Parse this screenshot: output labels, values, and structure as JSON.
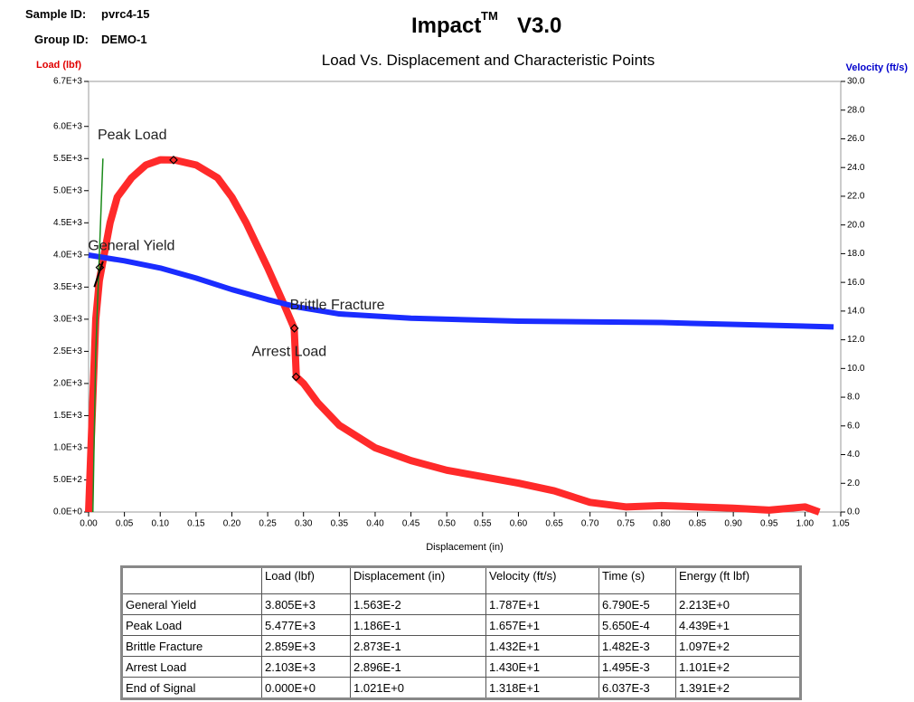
{
  "header": {
    "sample_label": "Sample ID:",
    "sample_id": "pvrc4-15",
    "group_label": "Group ID:",
    "group_id": "DEMO-1",
    "app_name": "Impact",
    "app_mark": "TM",
    "app_version": "V3.0"
  },
  "chart_data": {
    "type": "line",
    "title": "Load Vs. Displacement and Characteristic Points",
    "x_label": "Displacement (in)",
    "y_label": "Load (lbf)",
    "y2_label": "Velocity (ft/s)",
    "xlim": [
      0,
      1.05
    ],
    "xticks": [
      {
        "value": 0,
        "label": "0.00"
      },
      {
        "value": 0.05,
        "label": "0.05"
      },
      {
        "value": 0.1,
        "label": "0.10"
      },
      {
        "value": 0.15,
        "label": "0.15"
      },
      {
        "value": 0.2,
        "label": "0.20"
      },
      {
        "value": 0.25,
        "label": "0.25"
      },
      {
        "value": 0.3,
        "label": "0.30"
      },
      {
        "value": 0.35,
        "label": "0.35"
      },
      {
        "value": 0.4,
        "label": "0.40"
      },
      {
        "value": 0.45,
        "label": "0.45"
      },
      {
        "value": 0.5,
        "label": "0.50"
      },
      {
        "value": 0.55,
        "label": "0.55"
      },
      {
        "value": 0.6,
        "label": "0.60"
      },
      {
        "value": 0.65,
        "label": "0.65"
      },
      {
        "value": 0.7,
        "label": "0.70"
      },
      {
        "value": 0.75,
        "label": "0.75"
      },
      {
        "value": 0.8,
        "label": "0.80"
      },
      {
        "value": 0.85,
        "label": "0.85"
      },
      {
        "value": 0.9,
        "label": "0.90"
      },
      {
        "value": 0.95,
        "label": "0.95"
      },
      {
        "value": 1.0,
        "label": "1.00"
      },
      {
        "value": 1.05,
        "label": "1.05"
      }
    ],
    "ylim": [
      0,
      6700
    ],
    "yticks": [
      {
        "value": 0,
        "label": "0.0E+0"
      },
      {
        "value": 500,
        "label": "5.0E+2"
      },
      {
        "value": 1000,
        "label": "1.0E+3"
      },
      {
        "value": 1500,
        "label": "1.5E+3"
      },
      {
        "value": 2000,
        "label": "2.0E+3"
      },
      {
        "value": 2500,
        "label": "2.5E+3"
      },
      {
        "value": 3000,
        "label": "3.0E+3"
      },
      {
        "value": 3500,
        "label": "3.5E+3"
      },
      {
        "value": 4000,
        "label": "4.0E+3"
      },
      {
        "value": 4500,
        "label": "4.5E+3"
      },
      {
        "value": 5000,
        "label": "5.0E+3"
      },
      {
        "value": 5500,
        "label": "5.5E+3"
      },
      {
        "value": 6000,
        "label": "6.0E+3"
      },
      {
        "value": 6700,
        "label": "6.7E+3"
      }
    ],
    "y2lim": [
      0,
      30
    ],
    "y2ticks": [
      {
        "value": 0,
        "label": "0.0"
      },
      {
        "value": 2,
        "label": "2.0"
      },
      {
        "value": 4,
        "label": "4.0"
      },
      {
        "value": 6,
        "label": "6.0"
      },
      {
        "value": 8,
        "label": "8.0"
      },
      {
        "value": 10,
        "label": "10.0"
      },
      {
        "value": 12,
        "label": "12.0"
      },
      {
        "value": 14,
        "label": "14.0"
      },
      {
        "value": 16,
        "label": "16.0"
      },
      {
        "value": 18,
        "label": "18.0"
      },
      {
        "value": 20,
        "label": "20.0"
      },
      {
        "value": 22,
        "label": "22.0"
      },
      {
        "value": 24,
        "label": "24.0"
      },
      {
        "value": 26,
        "label": "26.0"
      },
      {
        "value": 28,
        "label": "28.0"
      },
      {
        "value": 30,
        "label": "30.0"
      }
    ],
    "series": [
      {
        "color": "#ff2a2a",
        "width": 8,
        "x": [
          0,
          0.005,
          0.01,
          0.015,
          0.02,
          0.03,
          0.04,
          0.06,
          0.08,
          0.1,
          0.12,
          0.15,
          0.18,
          0.2,
          0.22,
          0.25,
          0.27,
          0.287,
          0.29,
          0.3,
          0.32,
          0.35,
          0.4,
          0.45,
          0.5,
          0.55,
          0.6,
          0.65,
          0.7,
          0.75,
          0.8,
          0.85,
          0.9,
          0.95,
          1.0,
          1.02
        ],
        "values": [
          0,
          1500,
          3000,
          3600,
          3900,
          4500,
          4900,
          5200,
          5400,
          5480,
          5477,
          5400,
          5200,
          4900,
          4500,
          3800,
          3300,
          2859,
          2103,
          2000,
          1700,
          1350,
          1000,
          800,
          650,
          550,
          450,
          330,
          150,
          80,
          100,
          80,
          60,
          30,
          80,
          0
        ]
      },
      {
        "color": "#1a2cff",
        "width": 6,
        "axis": "y2",
        "x": [
          0,
          0.05,
          0.1,
          0.15,
          0.2,
          0.25,
          0.29,
          0.35,
          0.45,
          0.6,
          0.8,
          1.04
        ],
        "values": [
          17.9,
          17.5,
          17,
          16.3,
          15.5,
          14.8,
          14.3,
          13.8,
          13.5,
          13.3,
          13.2,
          12.9
        ]
      },
      {
        "color": "#1a8a1a",
        "width": 1.5,
        "x": [
          0.006,
          0.01,
          0.015,
          0.02
        ],
        "values": [
          0,
          2500,
          4000,
          5500
        ]
      },
      {
        "color": "#000000",
        "width": 2,
        "x": [
          0.008,
          0.02
        ],
        "values": [
          3500,
          3900
        ]
      }
    ],
    "annotations": [
      {
        "text": "General Yield",
        "x": 0.01563,
        "y": 3805
      },
      {
        "text": "Peak Load",
        "x": 0.1186,
        "y": 5477
      },
      {
        "text": "Brittle Fracture",
        "x": 0.2873,
        "y": 2859
      },
      {
        "text": "Arrest Load",
        "x": 0.2896,
        "y": 2103
      }
    ]
  },
  "table": {
    "columns": [
      "Load (lbf)",
      "Displacement (in)",
      "Velocity (ft/s)",
      "Time (s)",
      "Energy (ft lbf)"
    ],
    "rows": [
      {
        "label": "General Yield",
        "cells": [
          "3.805E+3",
          "1.563E-2",
          "1.787E+1",
          "6.790E-5",
          "2.213E+0"
        ]
      },
      {
        "label": "Peak Load",
        "cells": [
          "5.477E+3",
          "1.186E-1",
          "1.657E+1",
          "5.650E-4",
          "4.439E+1"
        ]
      },
      {
        "label": "Brittle Fracture",
        "cells": [
          "2.859E+3",
          "2.873E-1",
          "1.432E+1",
          "1.482E-3",
          "1.097E+2"
        ]
      },
      {
        "label": "Arrest Load",
        "cells": [
          "2.103E+3",
          "2.896E-1",
          "1.430E+1",
          "1.495E-3",
          "1.101E+2"
        ]
      },
      {
        "label": "End of Signal",
        "cells": [
          "0.000E+0",
          "1.021E+0",
          "1.318E+1",
          "6.037E-3",
          "1.391E+2"
        ]
      }
    ]
  }
}
